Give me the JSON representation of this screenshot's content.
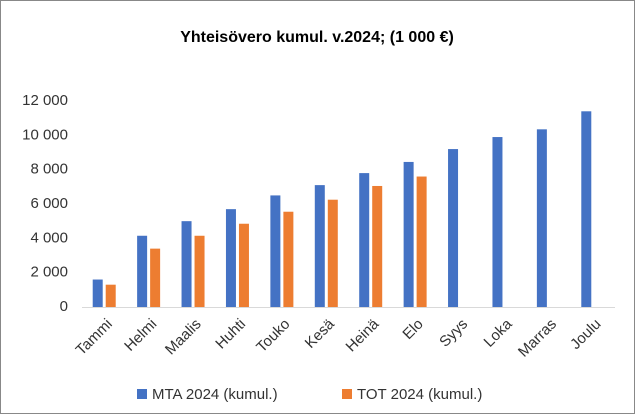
{
  "chart_data": {
    "type": "bar",
    "title": "Yhteisövero kumul. v.2024; (1 000 €)",
    "categories": [
      "Tammi",
      "Helmi",
      "Maalis",
      "Huhti",
      "Touko",
      "Kesä",
      "Heinä",
      "Elo",
      "Syys",
      "Loka",
      "Marras",
      "Joulu"
    ],
    "series": [
      {
        "name": "MTA 2024 (kumul.)",
        "color": "#4472c4",
        "values": [
          1600,
          4150,
          5000,
          5700,
          6500,
          7100,
          7800,
          8450,
          9200,
          9900,
          10350,
          11400
        ]
      },
      {
        "name": "TOT 2024 (kumul.)",
        "color": "#ed7d31",
        "values": [
          1300,
          3400,
          4150,
          4850,
          5550,
          6250,
          7050,
          7600,
          null,
          null,
          null,
          null
        ]
      }
    ],
    "ylim": [
      0,
      12000
    ],
    "yticks": [
      0,
      {
        "value": 2000,
        "label": "2 000"
      },
      {
        "value": 4000,
        "label": "4 000"
      },
      {
        "value": 6000,
        "label": "6 000"
      },
      {
        "value": 8000,
        "label": "8 000"
      },
      {
        "value": 10000,
        "label": "10 000"
      },
      {
        "value": 12000,
        "label": "12 000"
      }
    ],
    "grid": false,
    "legend": "bottom"
  }
}
